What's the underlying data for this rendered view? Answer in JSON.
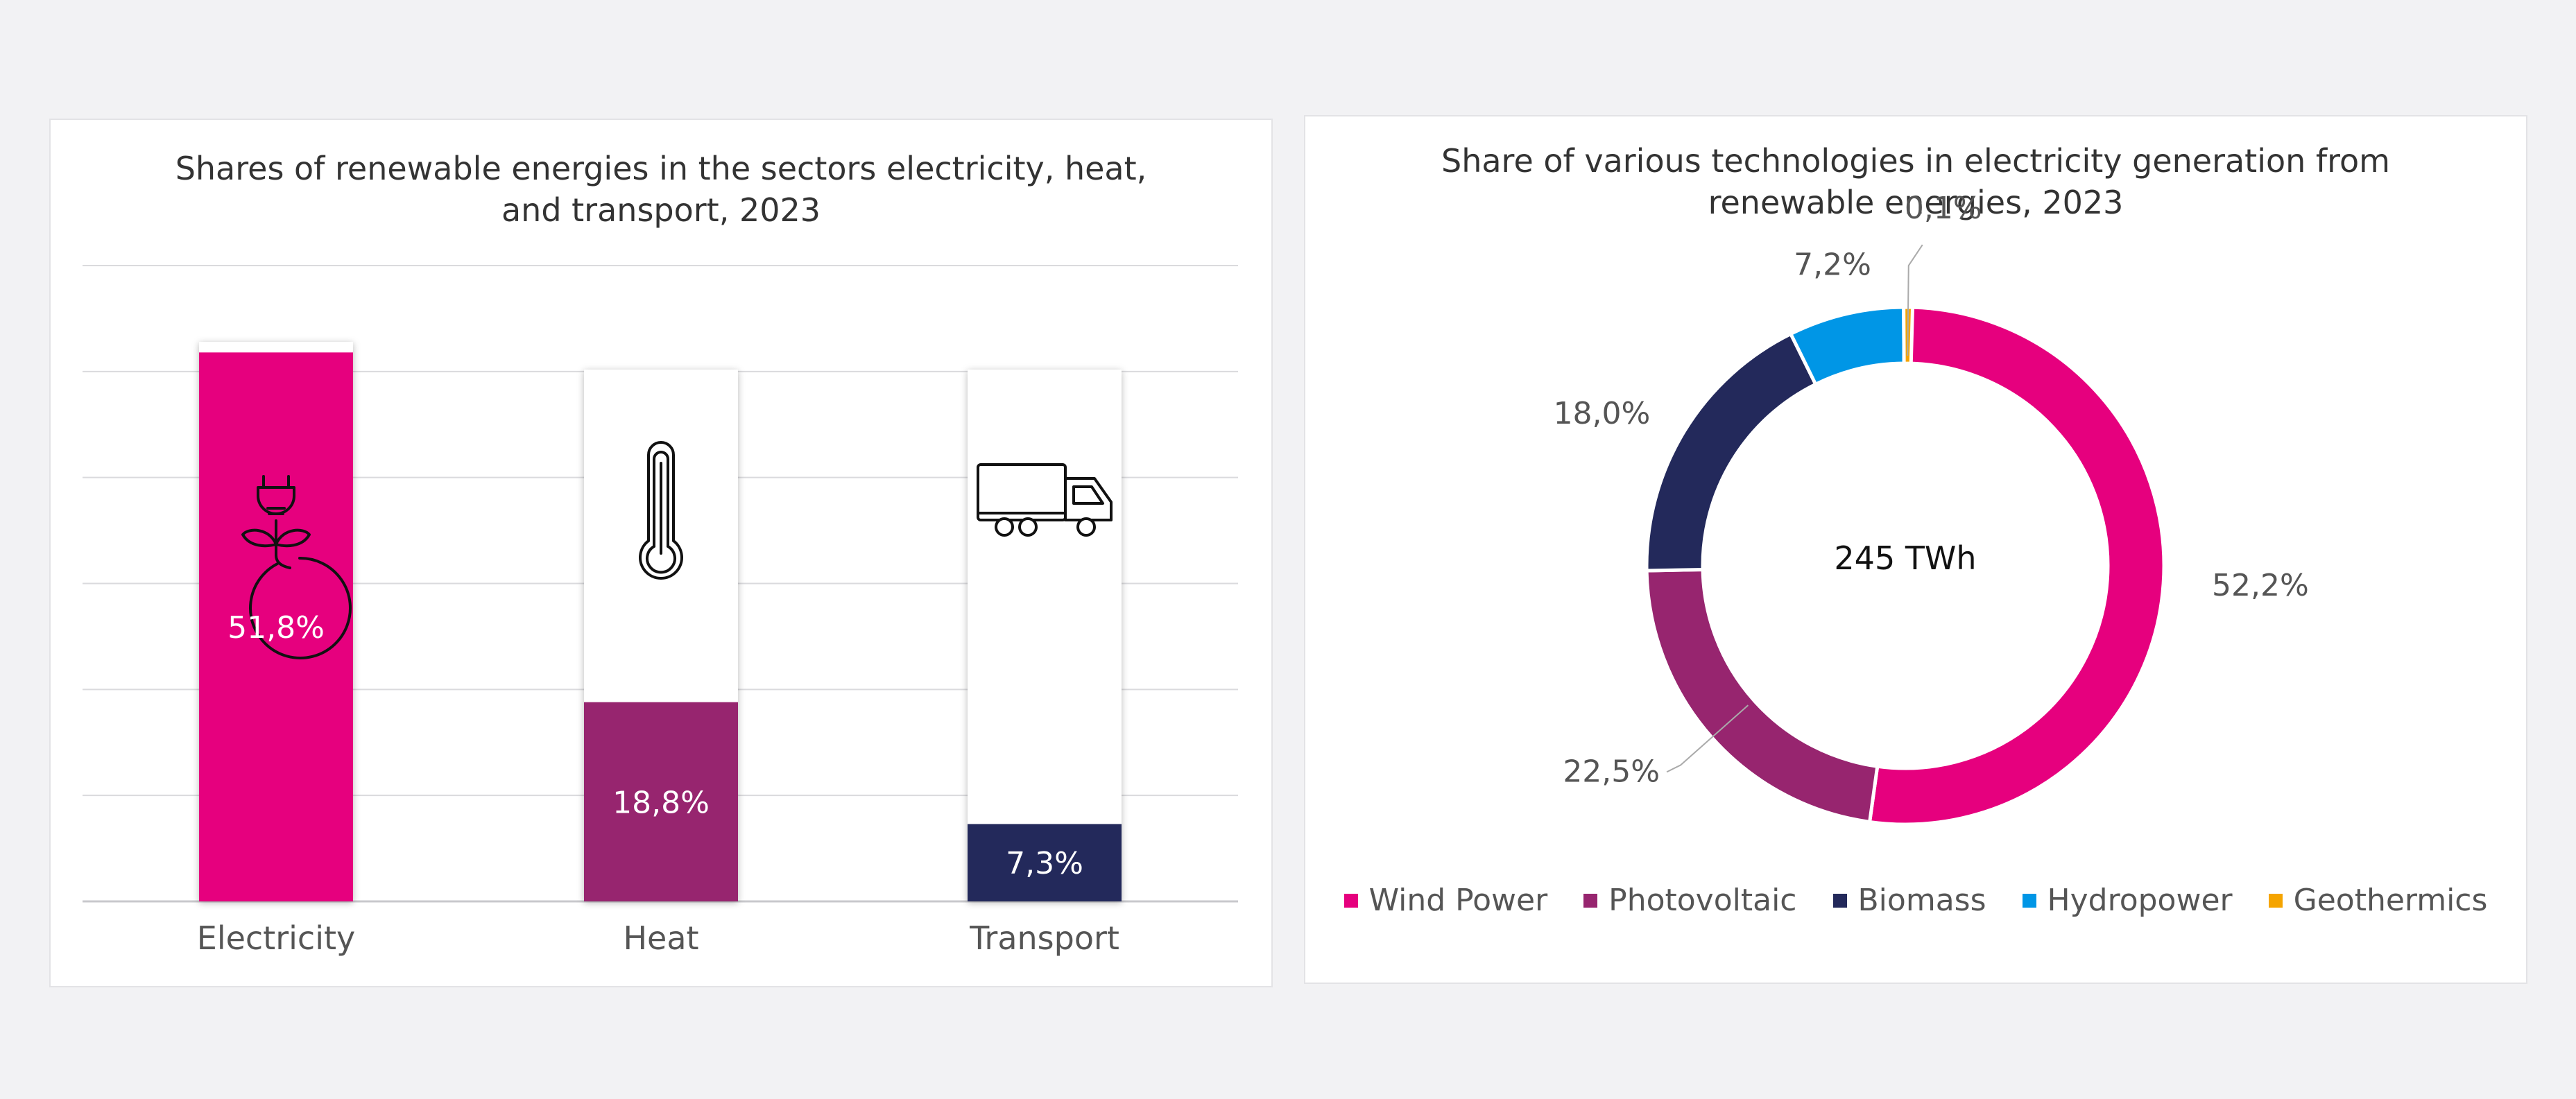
{
  "chart_data": [
    {
      "type": "bar",
      "title_lines": [
        "Shares of renewable energies in the sectors electricity, heat,",
        "and transport, 2023"
      ],
      "categories": [
        "Electricity",
        "Heat",
        "Transport"
      ],
      "values": [
        51.8,
        18.8,
        7.3
      ],
      "value_labels": [
        "51,8%",
        "18,8%",
        "7,3%"
      ],
      "icons": [
        "plug-leaf-icon",
        "thermometer-icon",
        "truck-icon"
      ],
      "ylim": [
        0,
        60
      ],
      "grid": true,
      "colors": [
        "#e6007e",
        "#97256f",
        "#23295b"
      ]
    },
    {
      "type": "pie",
      "title_lines": [
        "Share of various technologies in electricity generation from",
        "renewable energies, 2023"
      ],
      "center_label": "245 TWh",
      "categories": [
        "Wind Power",
        "Photovoltaic",
        "Biomass",
        "Hydropower",
        "Geothermics"
      ],
      "values": [
        52.2,
        22.5,
        18.0,
        7.2,
        0.1
      ],
      "value_labels": [
        "52,2%",
        "22,5%",
        "18,0%",
        "7,2%",
        "0,1%"
      ],
      "colors": [
        "#e6007e",
        "#97256f",
        "#23295b",
        "#0096e6",
        "#f5a400"
      ],
      "legend_position": "bottom"
    }
  ]
}
